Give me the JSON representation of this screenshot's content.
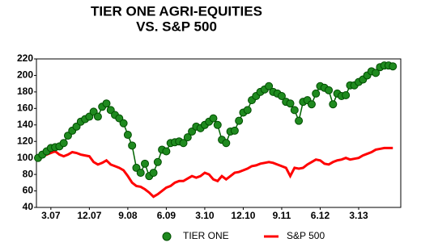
{
  "chart_data": {
    "type": "line",
    "title": [
      "TIER ONE AGRI-EQUITIES",
      "VS. S&P 500"
    ],
    "categories": [
      null,
      null,
      null,
      "3.07",
      null,
      null,
      null,
      null,
      null,
      null,
      null,
      null,
      "12.07",
      null,
      null,
      null,
      null,
      null,
      null,
      null,
      null,
      "9.08",
      null,
      null,
      null,
      null,
      null,
      null,
      null,
      null,
      "6.09",
      null,
      null,
      null,
      null,
      null,
      null,
      null,
      null,
      "3.10",
      null,
      null,
      null,
      null,
      null,
      null,
      null,
      null,
      "12.10",
      null,
      null,
      null,
      null,
      null,
      null,
      null,
      null,
      "9.11",
      null,
      null,
      null,
      null,
      null,
      null,
      null,
      null,
      "6.12",
      null,
      null,
      null,
      null,
      null,
      null,
      null,
      null,
      "3.13",
      null,
      null,
      null,
      null,
      null,
      null,
      null,
      null
    ],
    "series": [
      {
        "name": "TIER ONE",
        "color": "#1f8a1f",
        "marker": true,
        "values": [
          100,
          104,
          108,
          112,
          113,
          114,
          118,
          127,
          133,
          138,
          144,
          147,
          150,
          156,
          150,
          162,
          166,
          158,
          152,
          148,
          142,
          128,
          115,
          88,
          82,
          93,
          78,
          82,
          95,
          110,
          108,
          118,
          119,
          120,
          118,
          125,
          132,
          138,
          136,
          140,
          144,
          148,
          140,
          122,
          118,
          132,
          133,
          145,
          155,
          158,
          170,
          175,
          180,
          183,
          187,
          180,
          178,
          175,
          168,
          166,
          158,
          145,
          168,
          170,
          165,
          178,
          187,
          185,
          182,
          165,
          178,
          175,
          176,
          188,
          188,
          192,
          195,
          200,
          205,
          203,
          210,
          212,
          212,
          211
        ]
      },
      {
        "name": "S&P 500",
        "color": "#ff0000",
        "marker": false,
        "values": [
          100,
          102,
          104,
          106,
          108,
          104,
          102,
          104,
          107,
          106,
          104,
          103,
          102,
          95,
          92,
          94,
          97,
          92,
          90,
          88,
          85,
          78,
          70,
          66,
          65,
          62,
          58,
          53,
          56,
          60,
          64,
          66,
          70,
          72,
          72,
          75,
          78,
          76,
          78,
          82,
          80,
          74,
          72,
          78,
          74,
          78,
          82,
          83,
          85,
          87,
          90,
          91,
          93,
          94,
          95,
          94,
          92,
          90,
          88,
          78,
          88,
          87,
          88,
          92,
          95,
          98,
          97,
          93,
          92,
          95,
          97,
          98,
          100,
          98,
          99,
          100,
          103,
          105,
          107,
          110,
          111,
          112,
          112,
          112
        ]
      }
    ],
    "ylim": [
      40,
      220
    ],
    "yticks": [
      40,
      60,
      80,
      100,
      120,
      140,
      160,
      180,
      200,
      220
    ],
    "grid": false
  }
}
